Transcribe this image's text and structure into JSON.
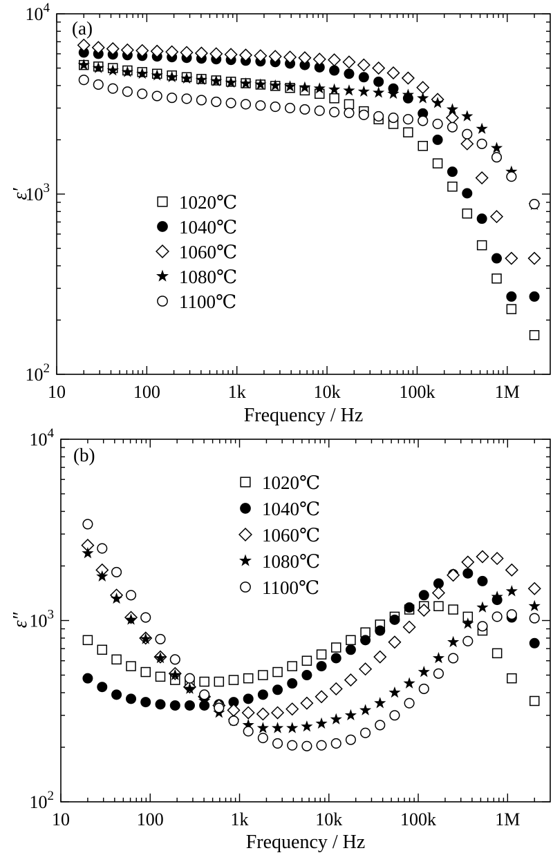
{
  "chart_data": [
    {
      "type": "scatter",
      "panel_label": "(a)",
      "xlabel": "Frequency / Hz",
      "ylabel": "ε′",
      "xscale": "log",
      "yscale": "log",
      "xlim": [
        10,
        3000000
      ],
      "ylim": [
        100,
        10000
      ],
      "x_ticks": [
        {
          "value": 10,
          "label": "10"
        },
        {
          "value": 100,
          "label": "100"
        },
        {
          "value": 1000,
          "label": "1k"
        },
        {
          "value": 10000,
          "label": "10k"
        },
        {
          "value": 100000,
          "label": "100k"
        },
        {
          "value": 1000000,
          "label": "1M"
        }
      ],
      "y_ticks": [
        {
          "value": 100,
          "base": "10",
          "exp": "2"
        },
        {
          "value": 1000,
          "base": "10",
          "exp": "3"
        },
        {
          "value": 10000,
          "base": "10",
          "exp": "4"
        }
      ],
      "legend_position": "middle-left",
      "x": [
        20,
        29,
        42,
        61,
        89,
        130,
        190,
        277,
        404,
        589,
        859,
        1253,
        1828,
        2665,
        3886,
        5666,
        8262,
        12046,
        17565,
        25613,
        37347,
        54456,
        79407,
        115786,
        168832,
        246184,
        358974,
        523441,
        763261,
        1112958,
        2000000
      ],
      "series": [
        {
          "name": "1020℃",
          "marker": "square-open",
          "values": [
            5200,
            5100,
            5000,
            4850,
            4750,
            4650,
            4550,
            4450,
            4350,
            4270,
            4200,
            4120,
            4050,
            3980,
            3880,
            3760,
            3600,
            3400,
            3150,
            2880,
            2600,
            2450,
            2200,
            1850,
            1480,
            1100,
            780,
            520,
            340,
            230,
            165
          ]
        },
        {
          "name": "1040℃",
          "marker": "circle-filled",
          "values": [
            6100,
            6000,
            5950,
            5900,
            5850,
            5800,
            5750,
            5700,
            5650,
            5600,
            5550,
            5500,
            5450,
            5400,
            5300,
            5200,
            5050,
            4850,
            4650,
            4450,
            4200,
            3850,
            3400,
            2800,
            2000,
            1330,
            1010,
            730,
            440,
            270,
            270
          ]
        },
        {
          "name": "1060℃",
          "marker": "diamond-open",
          "values": [
            6700,
            6500,
            6400,
            6300,
            6250,
            6200,
            6150,
            6100,
            6050,
            6000,
            5950,
            5900,
            5850,
            5800,
            5750,
            5700,
            5600,
            5550,
            5400,
            5200,
            5000,
            4700,
            4400,
            3900,
            3350,
            2650,
            1900,
            1230,
            750,
            440,
            440
          ]
        },
        {
          "name": "1080℃",
          "marker": "star-filled",
          "values": [
            5200,
            5000,
            4850,
            4750,
            4650,
            4550,
            4450,
            4370,
            4300,
            4230,
            4150,
            4100,
            4050,
            4000,
            3950,
            3900,
            3850,
            3800,
            3750,
            3700,
            3650,
            3600,
            3550,
            3400,
            3200,
            2950,
            2700,
            2300,
            1800,
            1330,
            870
          ]
        },
        {
          "name": "1100℃",
          "marker": "circle-open",
          "values": [
            4300,
            4050,
            3850,
            3700,
            3600,
            3500,
            3420,
            3380,
            3320,
            3250,
            3200,
            3150,
            3100,
            3050,
            3000,
            2950,
            2900,
            2850,
            2820,
            2750,
            2700,
            2650,
            2600,
            2550,
            2450,
            2350,
            2150,
            1900,
            1600,
            1250,
            880
          ]
        }
      ],
      "legend": [
        "1020℃",
        "1040℃",
        "1060℃",
        "1080℃",
        "1100℃"
      ]
    },
    {
      "type": "scatter",
      "panel_label": "(b)",
      "xlabel": "Frequency / Hz",
      "ylabel": "ε″",
      "xscale": "log",
      "yscale": "log",
      "xlim": [
        10,
        3000000
      ],
      "ylim": [
        100,
        10000
      ],
      "x_ticks": [
        {
          "value": 10,
          "label": "10"
        },
        {
          "value": 100,
          "label": "100"
        },
        {
          "value": 1000,
          "label": "1k"
        },
        {
          "value": 10000,
          "label": "10k"
        },
        {
          "value": 100000,
          "label": "100k"
        },
        {
          "value": 1000000,
          "label": "1M"
        }
      ],
      "y_ticks": [
        {
          "value": 100,
          "base": "10",
          "exp": "2"
        },
        {
          "value": 1000,
          "base": "10",
          "exp": "3"
        },
        {
          "value": 10000,
          "base": "10",
          "exp": "4"
        }
      ],
      "legend_position": "top-center",
      "x": [
        20,
        29,
        42,
        61,
        89,
        130,
        190,
        277,
        404,
        589,
        859,
        1253,
        1828,
        2665,
        3886,
        5666,
        8262,
        12046,
        17565,
        25613,
        37347,
        54456,
        79407,
        115786,
        168832,
        246184,
        358974,
        523441,
        763261,
        1112958,
        2000000
      ],
      "series": [
        {
          "name": "1020℃",
          "marker": "square-open",
          "values": [
            780,
            690,
            610,
            560,
            520,
            490,
            470,
            460,
            460,
            460,
            470,
            480,
            500,
            520,
            560,
            600,
            650,
            710,
            780,
            860,
            950,
            1050,
            1150,
            1200,
            1200,
            1150,
            1050,
            880,
            660,
            480,
            360
          ]
        },
        {
          "name": "1040℃",
          "marker": "circle-filled",
          "values": [
            480,
            430,
            390,
            370,
            355,
            345,
            340,
            340,
            340,
            345,
            355,
            370,
            390,
            415,
            450,
            500,
            560,
            620,
            690,
            780,
            880,
            1010,
            1180,
            1380,
            1600,
            1800,
            1820,
            1650,
            1300,
            1040,
            750
          ]
        },
        {
          "name": "1060℃",
          "marker": "diamond-open",
          "values": [
            2600,
            1900,
            1380,
            1040,
            800,
            630,
            510,
            430,
            380,
            340,
            320,
            310,
            305,
            310,
            325,
            350,
            380,
            420,
            470,
            540,
            630,
            760,
            920,
            1140,
            1420,
            1780,
            2100,
            2250,
            2200,
            1900,
            1500
          ]
        },
        {
          "name": "1080℃",
          "marker": "star-filled",
          "values": [
            2350,
            1750,
            1320,
            1010,
            790,
            620,
            500,
            420,
            360,
            310,
            280,
            265,
            255,
            255,
            255,
            260,
            270,
            285,
            300,
            320,
            350,
            400,
            450,
            520,
            620,
            760,
            960,
            1180,
            1350,
            1450,
            1200
          ]
        },
        {
          "name": "1100℃",
          "marker": "circle-open",
          "values": [
            3400,
            2500,
            1850,
            1380,
            1040,
            790,
            610,
            480,
            390,
            330,
            280,
            245,
            225,
            210,
            205,
            203,
            205,
            210,
            220,
            240,
            265,
            300,
            350,
            420,
            510,
            620,
            770,
            930,
            1050,
            1080,
            1030
          ]
        }
      ],
      "legend": [
        "1020℃",
        "1040℃",
        "1060℃",
        "1080℃",
        "1100℃"
      ]
    }
  ]
}
